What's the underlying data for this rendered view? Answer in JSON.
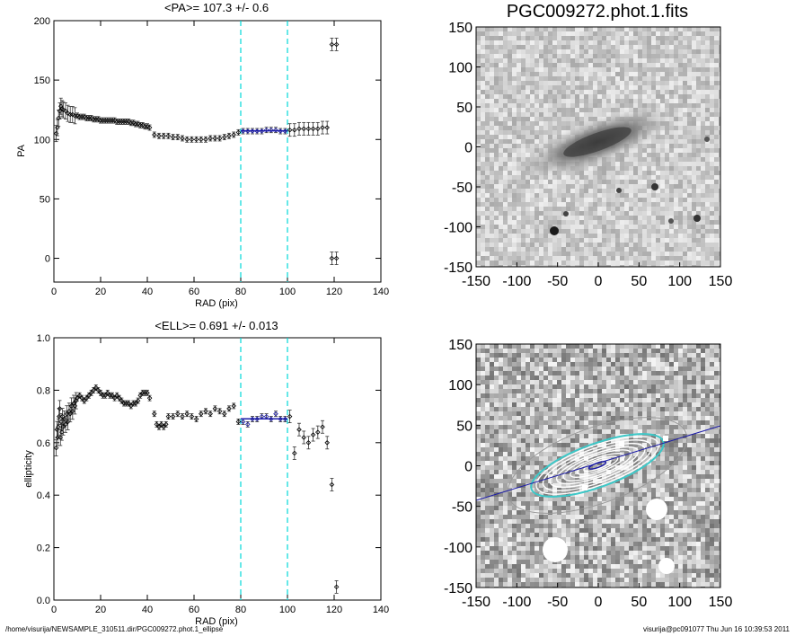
{
  "footer": {
    "path": "/home/visurija/NEWSAMPLE_310511.dir/PGC009272.phot.1_ellipse",
    "user_host_date": "visurija@pc091077  Thu Jun 16 10:39:53 2011"
  },
  "colors": {
    "axis": "#000000",
    "fit": "#1a1aa8",
    "cyan": "#00d8d8",
    "gray": "#333333"
  },
  "chart_data": [
    {
      "type": "scatter",
      "title": "<PA>= 107.3 +/-   0.6",
      "xlabel": "RAD (pix)",
      "ylabel": "PA",
      "xlim": [
        0,
        140
      ],
      "ylim": [
        -20,
        200
      ],
      "xticks": [
        0,
        20,
        40,
        60,
        80,
        100,
        120,
        140
      ],
      "yticks": [
        0,
        50,
        100,
        150,
        200
      ],
      "fit_range": [
        80,
        100
      ],
      "fit_value": 107.3,
      "series": [
        {
          "points": [
            [
              1.0,
              105
            ],
            [
              1.5,
              110
            ],
            [
              2.0,
              118
            ],
            [
              2.5,
              124
            ],
            [
              3.0,
              128
            ],
            [
              3.5,
              126
            ],
            [
              4.0,
              125
            ],
            [
              5.0,
              124
            ],
            [
              6.0,
              122
            ],
            [
              7.0,
              121
            ],
            [
              8.0,
              121
            ],
            [
              9.0,
              120
            ],
            [
              10.0,
              120
            ],
            [
              11.0,
              119
            ],
            [
              12.0,
              119
            ],
            [
              13.0,
              119
            ],
            [
              14.0,
              118
            ],
            [
              15.0,
              118
            ],
            [
              16.0,
              118
            ],
            [
              17.0,
              117
            ],
            [
              18.0,
              117
            ],
            [
              19.0,
              117
            ],
            [
              20.0,
              116
            ],
            [
              21.0,
              116
            ],
            [
              22.0,
              116
            ],
            [
              23.0,
              116
            ],
            [
              24.0,
              116
            ],
            [
              25.0,
              116
            ],
            [
              26.0,
              116
            ],
            [
              27.0,
              115
            ],
            [
              28.0,
              115
            ],
            [
              29.0,
              115
            ],
            [
              30.0,
              115
            ],
            [
              31.0,
              115
            ],
            [
              32.0,
              115
            ],
            [
              33.0,
              114
            ],
            [
              34.0,
              114
            ],
            [
              35.0,
              113
            ],
            [
              36.0,
              113
            ],
            [
              37.0,
              112
            ],
            [
              38.0,
              112
            ],
            [
              39.0,
              111
            ],
            [
              40.0,
              111
            ],
            [
              41.0,
              110
            ],
            [
              43.0,
              104
            ],
            [
              45.0,
              103
            ],
            [
              47.0,
              103
            ],
            [
              49.0,
              103
            ],
            [
              51.0,
              102
            ],
            [
              53.0,
              102
            ],
            [
              55.0,
              101
            ],
            [
              57.0,
              100
            ],
            [
              59.0,
              100
            ],
            [
              61.0,
              100
            ],
            [
              63.0,
              100
            ],
            [
              65.0,
              100
            ],
            [
              67.0,
              101
            ],
            [
              69.0,
              101
            ],
            [
              71.0,
              101
            ],
            [
              73.0,
              102
            ],
            [
              75.0,
              103
            ],
            [
              77.0,
              104
            ],
            [
              79.0,
              106
            ],
            [
              81.0,
              107
            ],
            [
              83.0,
              107
            ],
            [
              85.0,
              107
            ],
            [
              87.0,
              107
            ],
            [
              89.0,
              107
            ],
            [
              91.0,
              108
            ],
            [
              93.0,
              108
            ],
            [
              95.0,
              108
            ],
            [
              97.0,
              107
            ],
            [
              99.0,
              107
            ],
            [
              101.0,
              108
            ],
            [
              103.0,
              108
            ],
            [
              105.0,
              109
            ],
            [
              107.0,
              109
            ],
            [
              109.0,
              109
            ],
            [
              111.0,
              109
            ],
            [
              113.0,
              109
            ],
            [
              115.0,
              110
            ],
            [
              117.0,
              110
            ],
            [
              119.0,
              180
            ],
            [
              121.0,
              180
            ],
            [
              119.0,
              0
            ],
            [
              121.0,
              0
            ]
          ]
        }
      ]
    },
    {
      "type": "scatter",
      "title": "<ELL>= 0.691 +/-  0.013",
      "xlabel": "RAD (pix)",
      "ylabel": "ellipticity",
      "xlim": [
        0,
        140
      ],
      "ylim": [
        0.0,
        1.0
      ],
      "xticks": [
        0,
        20,
        40,
        60,
        80,
        100,
        120,
        140
      ],
      "yticks": [
        0.0,
        0.2,
        0.4,
        0.6,
        0.8,
        1.0
      ],
      "fit_range": [
        80,
        100
      ],
      "fit_value": 0.691,
      "series": [
        {
          "points": [
            [
              1.0,
              0.58
            ],
            [
              1.3,
              0.65
            ],
            [
              1.6,
              0.62
            ],
            [
              1.9,
              0.66
            ],
            [
              2.2,
              0.7
            ],
            [
              2.5,
              0.73
            ],
            [
              2.8,
              0.62
            ],
            [
              3.1,
              0.68
            ],
            [
              3.4,
              0.64
            ],
            [
              3.7,
              0.7
            ],
            [
              4.0,
              0.66
            ],
            [
              4.5,
              0.69
            ],
            [
              5.0,
              0.67
            ],
            [
              5.5,
              0.71
            ],
            [
              6.0,
              0.68
            ],
            [
              6.5,
              0.72
            ],
            [
              7.0,
              0.71
            ],
            [
              7.5,
              0.74
            ],
            [
              8.0,
              0.72
            ],
            [
              8.5,
              0.75
            ],
            [
              9.0,
              0.74
            ],
            [
              9.5,
              0.76
            ],
            [
              10.0,
              0.77
            ],
            [
              11.0,
              0.78
            ],
            [
              12.0,
              0.77
            ],
            [
              13.0,
              0.76
            ],
            [
              14.0,
              0.77
            ],
            [
              15.0,
              0.78
            ],
            [
              16.0,
              0.79
            ],
            [
              17.0,
              0.8
            ],
            [
              18.0,
              0.81
            ],
            [
              19.0,
              0.8
            ],
            [
              20.0,
              0.79
            ],
            [
              21.0,
              0.78
            ],
            [
              22.0,
              0.78
            ],
            [
              23.0,
              0.79
            ],
            [
              24.0,
              0.78
            ],
            [
              25.0,
              0.78
            ],
            [
              26.0,
              0.77
            ],
            [
              27.0,
              0.78
            ],
            [
              28.0,
              0.77
            ],
            [
              29.0,
              0.76
            ],
            [
              30.0,
              0.75
            ],
            [
              31.0,
              0.75
            ],
            [
              32.0,
              0.75
            ],
            [
              33.0,
              0.74
            ],
            [
              34.0,
              0.75
            ],
            [
              35.0,
              0.75
            ],
            [
              36.0,
              0.76
            ],
            [
              37.0,
              0.78
            ],
            [
              38.0,
              0.79
            ],
            [
              39.0,
              0.79
            ],
            [
              40.0,
              0.79
            ],
            [
              41.0,
              0.77
            ],
            [
              43.0,
              0.71
            ],
            [
              44.0,
              0.67
            ],
            [
              45.0,
              0.66
            ],
            [
              46.0,
              0.67
            ],
            [
              47.0,
              0.66
            ],
            [
              48.0,
              0.67
            ],
            [
              49.0,
              0.7
            ],
            [
              51.0,
              0.7
            ],
            [
              53.0,
              0.71
            ],
            [
              55.0,
              0.7
            ],
            [
              57.0,
              0.71
            ],
            [
              59.0,
              0.7
            ],
            [
              61.0,
              0.69
            ],
            [
              63.0,
              0.71
            ],
            [
              65.0,
              0.72
            ],
            [
              67.0,
              0.71
            ],
            [
              69.0,
              0.73
            ],
            [
              71.0,
              0.72
            ],
            [
              73.0,
              0.71
            ],
            [
              75.0,
              0.73
            ],
            [
              77.0,
              0.74
            ],
            [
              79.0,
              0.68
            ],
            [
              81.0,
              0.68
            ],
            [
              83.0,
              0.67
            ],
            [
              85.0,
              0.69
            ],
            [
              87.0,
              0.69
            ],
            [
              89.0,
              0.7
            ],
            [
              91.0,
              0.7
            ],
            [
              93.0,
              0.69
            ],
            [
              95.0,
              0.71
            ],
            [
              97.0,
              0.69
            ],
            [
              99.0,
              0.69
            ],
            [
              101.0,
              0.7
            ],
            [
              103.0,
              0.56
            ],
            [
              105.0,
              0.65
            ],
            [
              107.0,
              0.62
            ],
            [
              109.0,
              0.6
            ],
            [
              111.0,
              0.63
            ],
            [
              113.0,
              0.64
            ],
            [
              115.0,
              0.66
            ],
            [
              117.0,
              0.6
            ],
            [
              119.0,
              0.44
            ],
            [
              121.0,
              0.05
            ]
          ]
        }
      ]
    }
  ],
  "images": {
    "top_title": "PGC009272.phot.1.fits",
    "ticks": [
      150,
      100,
      50,
      0,
      -50,
      -100,
      -150
    ],
    "xticks": [
      -150,
      -100,
      -50,
      0,
      50,
      100,
      150
    ]
  }
}
